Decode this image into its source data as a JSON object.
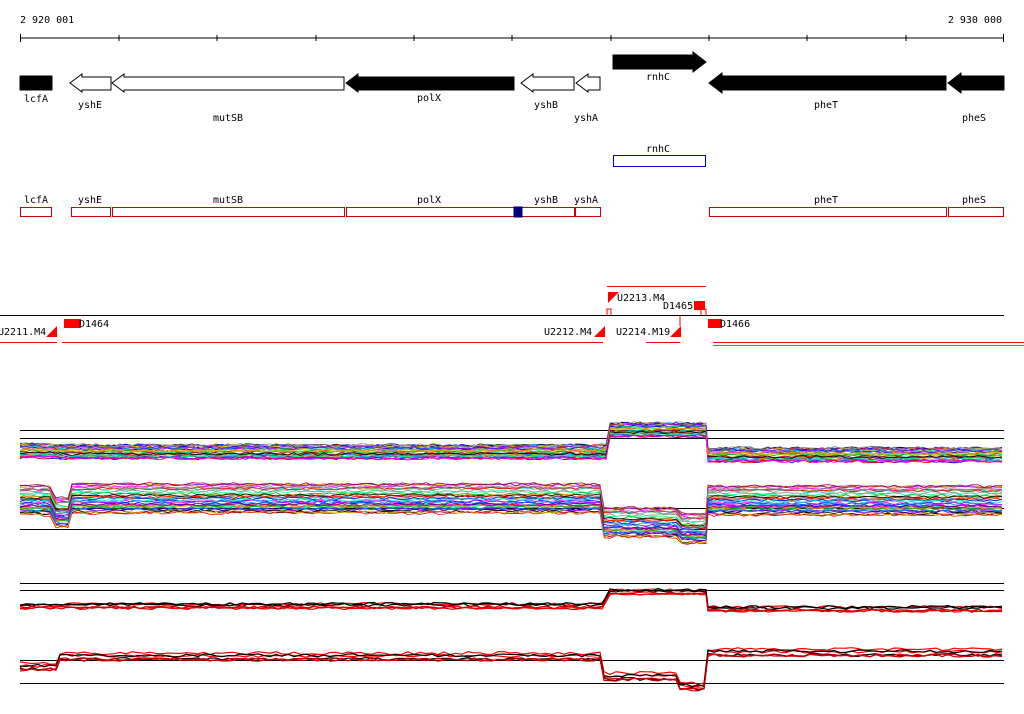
{
  "ruler": {
    "start_label": "2 920 001",
    "end_label": "2 930 000"
  },
  "genes": [
    {
      "label": "lcfA",
      "strand": "+",
      "filled": true
    },
    {
      "label": "yshE",
      "strand": "-",
      "filled": false
    },
    {
      "label": "mutSB",
      "strand": "-",
      "filled": false
    },
    {
      "label": "polX",
      "strand": "-",
      "filled": true
    },
    {
      "label": "yshB",
      "strand": "-",
      "filled": false
    },
    {
      "label": "yshA",
      "strand": "-",
      "filled": false
    },
    {
      "label": "rnhC",
      "strand": "+",
      "filled": true
    },
    {
      "label": "pheT",
      "strand": "-",
      "filled": true
    },
    {
      "label": "pheS",
      "strand": "-",
      "filled": true
    }
  ],
  "track2": {
    "rnhC": "rnhC"
  },
  "track3": [
    {
      "label": "lcfA"
    },
    {
      "label": "yshE"
    },
    {
      "label": "mutSB"
    },
    {
      "label": "polX"
    },
    {
      "label": "yshB"
    },
    {
      "label": "yshA"
    },
    {
      "label": "pheT"
    },
    {
      "label": "pheS"
    }
  ],
  "features": [
    {
      "label": "U2211.M4"
    },
    {
      "label": "D1464"
    },
    {
      "label": "U2212.M4"
    },
    {
      "label": "U2213.M4"
    },
    {
      "label": "D1465"
    },
    {
      "label": "U2214.M19"
    },
    {
      "label": "D1466"
    }
  ],
  "colors": {
    "gene_fill": "#000000",
    "track3_outline": "#cc0000",
    "track2_outline": "#0000cc",
    "feature_red": "#ff0000",
    "highlight_block": "#000080"
  }
}
